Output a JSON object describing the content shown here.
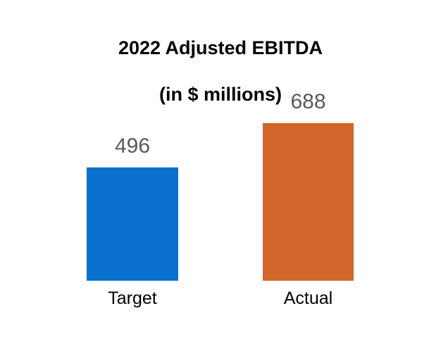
{
  "chart_data": {
    "type": "bar",
    "title": "2022 Adjusted EBITDA",
    "subtitle": "(in $ millions)",
    "categories": [
      "Target",
      "Actual"
    ],
    "values": [
      496,
      688
    ],
    "bar_colors": [
      "#0970CE",
      "#D2662A"
    ],
    "value_label_color": "#595959",
    "title_color": "#000000",
    "category_label_color": "#000000",
    "background_color": "#FFFFFF",
    "legend": "none",
    "gridlines": false,
    "axes_visible": false,
    "data_labels": true,
    "baseline": 0,
    "ylim": [
      0,
      700
    ]
  }
}
